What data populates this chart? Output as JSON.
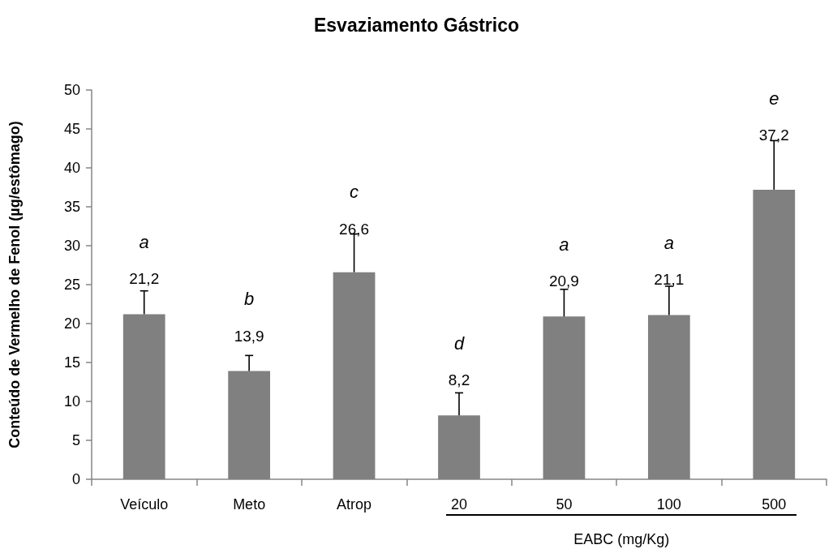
{
  "chart_data": {
    "type": "bar",
    "title": "Esvaziamento Gástrico",
    "ylabel": "Conteúdo de Vermelho de Fenol (µg/estômago)",
    "xlabel": "EABC (mg/Kg)",
    "categories": [
      "Veículo",
      "Meto",
      "Atrop",
      "20",
      "50",
      "100",
      "500"
    ],
    "values": [
      21.2,
      13.9,
      26.6,
      8.2,
      20.9,
      21.1,
      37.2
    ],
    "value_labels": [
      "21,2",
      "13,9",
      "26,6",
      "8,2",
      "20,9",
      "21,1",
      "37,2"
    ],
    "errors": [
      [
        21.2,
        24.2
      ],
      [
        13.9,
        15.9
      ],
      [
        26.6,
        31.5
      ],
      [
        8.2,
        11.1
      ],
      [
        20.9,
        24.4
      ],
      [
        21.1,
        24.8
      ],
      [
        37.2,
        43.5
      ]
    ],
    "color": "#808080",
    "ylim": [
      0,
      50
    ],
    "yticks": [
      0,
      5,
      10,
      15,
      20,
      25,
      30,
      35,
      40,
      45,
      50
    ],
    "grid": false,
    "annotations": [
      "a",
      "b",
      "c",
      "d",
      "a",
      "a",
      "e"
    ]
  }
}
